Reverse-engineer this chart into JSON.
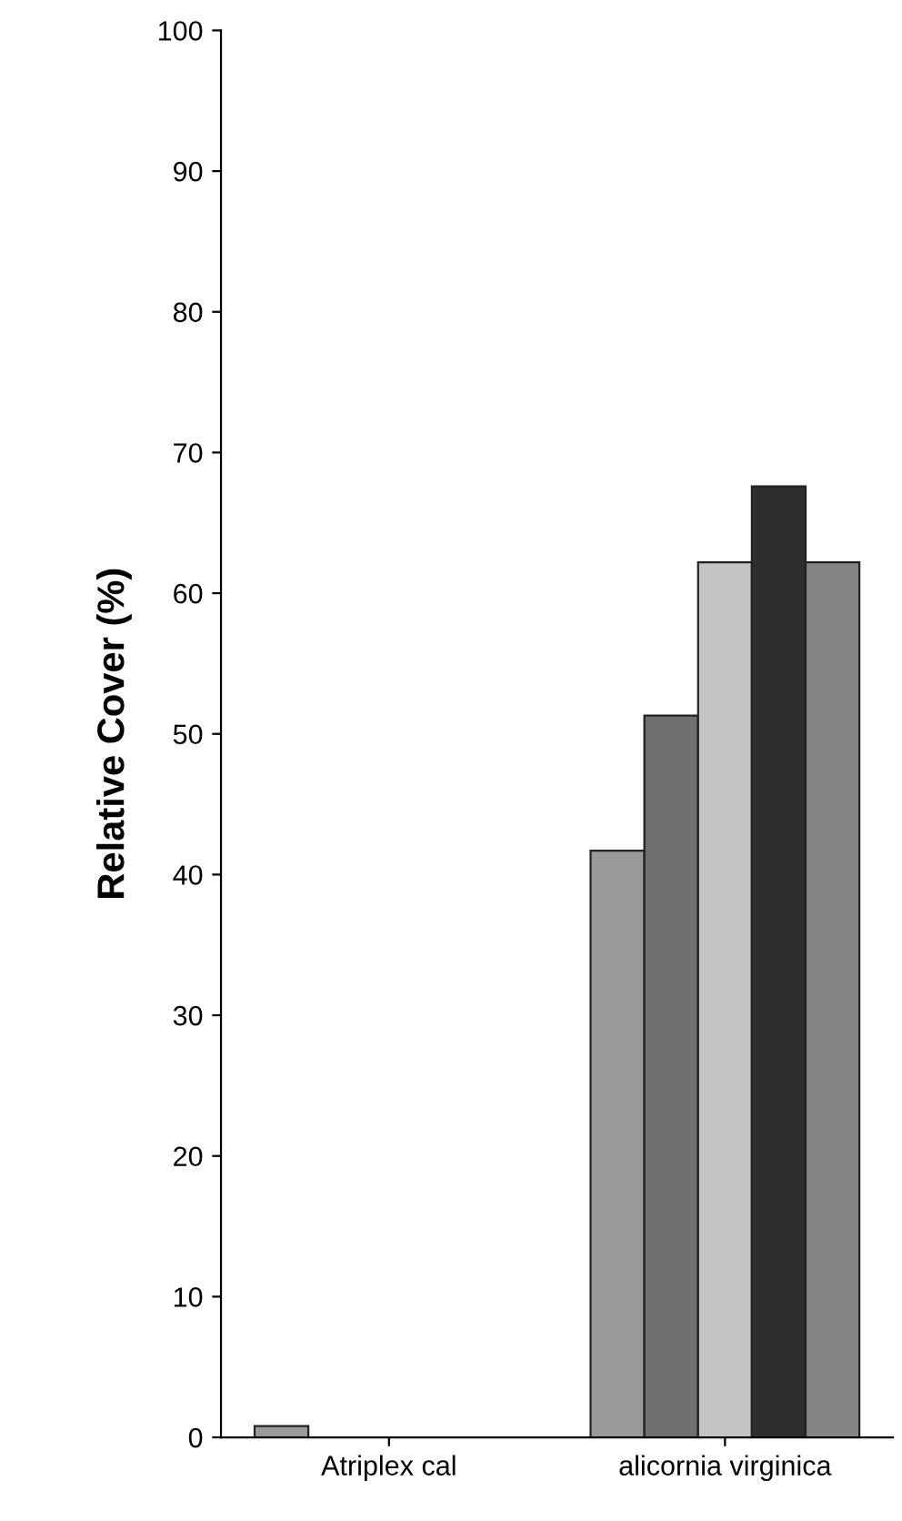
{
  "chart_data": {
    "type": "bar",
    "ylabel": "Relative Cover (%)",
    "categories": [
      "Atriplex cal",
      "alicornia virginica"
    ],
    "series": [
      {
        "color": "#9a9a9a",
        "values": [
          0.8,
          41.7
        ]
      },
      {
        "color": "#6e6e6e",
        "values": [
          null,
          51.3
        ]
      },
      {
        "color": "#c4c4c4",
        "values": [
          null,
          62.2
        ]
      },
      {
        "color": "#2e2e2e",
        "values": [
          null,
          67.6
        ]
      },
      {
        "color": "#858585",
        "values": [
          null,
          62.2
        ]
      }
    ],
    "ylim": [
      0,
      100
    ],
    "yticks": [
      0,
      10,
      20,
      30,
      40,
      50,
      60,
      70,
      80,
      90,
      100
    ],
    "grid": false,
    "legend": false
  }
}
